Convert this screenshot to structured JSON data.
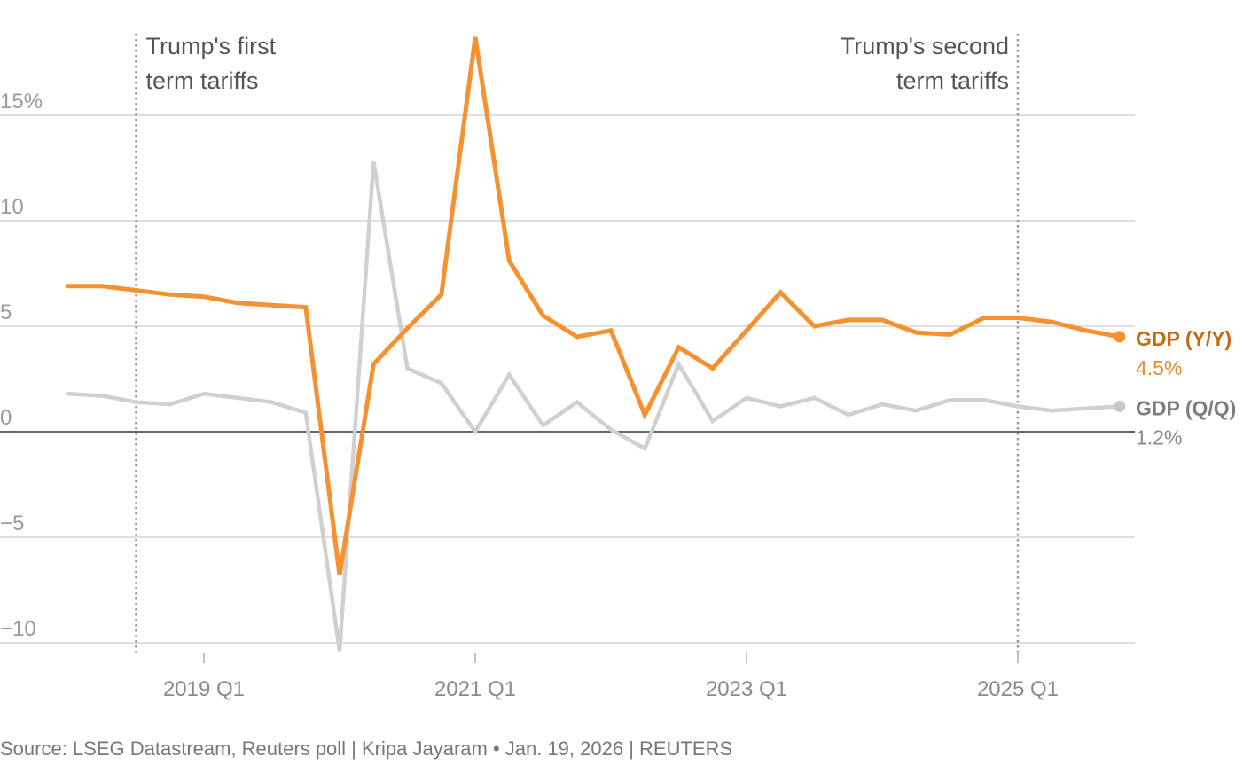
{
  "chart_data": {
    "type": "line",
    "ylim": [
      -10.5,
      19
    ],
    "yticks": [
      {
        "value": 15,
        "label": "15%"
      },
      {
        "value": 10,
        "label": "10"
      },
      {
        "value": 5,
        "label": "5"
      },
      {
        "value": 0,
        "label": "0"
      },
      {
        "value": -5,
        "label": "−5"
      },
      {
        "value": -10,
        "label": "−10"
      }
    ],
    "x_start": "2018 Q1",
    "xticks": [
      {
        "index": 4,
        "label": "2019 Q1"
      },
      {
        "index": 12,
        "label": "2021 Q1"
      },
      {
        "index": 20,
        "label": "2023 Q1"
      },
      {
        "index": 28,
        "label": "2025 Q1"
      }
    ],
    "series": [
      {
        "name": "GDP (Q/Q)",
        "color": "#d0d0d0",
        "label_color": "#7d7d7d",
        "end_value_label": "1.2%",
        "values": [
          1.8,
          1.7,
          1.4,
          1.3,
          1.8,
          1.6,
          1.4,
          0.9,
          -10.4,
          12.8,
          3.0,
          2.3,
          0.0,
          2.7,
          0.3,
          1.4,
          0.1,
          -0.8,
          3.2,
          0.5,
          1.6,
          1.2,
          1.6,
          0.8,
          1.3,
          1.0,
          1.5,
          1.5,
          1.2,
          1.0,
          1.1,
          1.2
        ]
      },
      {
        "name": "GDP (Y/Y)",
        "color": "#f5922f",
        "label_color": "#c46a12",
        "end_value_label": "4.5%",
        "values": [
          6.9,
          6.9,
          6.7,
          6.5,
          6.4,
          6.1,
          6.0,
          5.9,
          -6.8,
          3.2,
          4.9,
          6.5,
          18.7,
          8.1,
          5.5,
          4.5,
          4.8,
          0.8,
          4.0,
          3.0,
          4.8,
          6.6,
          5.0,
          5.3,
          5.3,
          4.7,
          4.6,
          5.4,
          5.4,
          5.2,
          4.8,
          4.5
        ]
      }
    ],
    "annotations": [
      {
        "line1": "Trump's first",
        "line2": "term tariffs",
        "x_index": 2,
        "align": "right-of-line"
      },
      {
        "line1": "Trump's second",
        "line2": "term tariffs",
        "x_index": 28,
        "align": "left-of-line"
      }
    ]
  },
  "footer": {
    "source": "Source: LSEG Datastream, Reuters poll | Kripa Jayaram • Jan. 19, 2026 | REUTERS"
  }
}
